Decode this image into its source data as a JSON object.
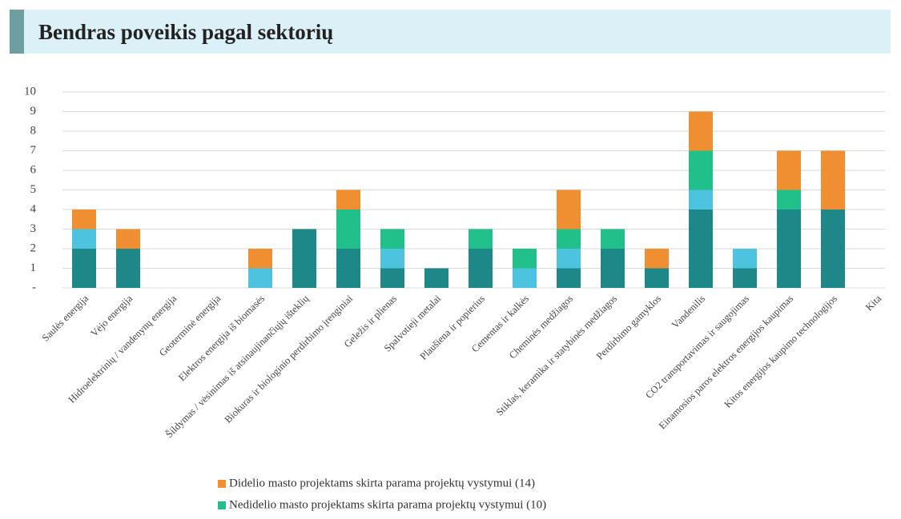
{
  "chart_data": {
    "type": "bar",
    "stacked": true,
    "title": "Bendras poveikis pagal sektorių",
    "categories": [
      "Saulės energija",
      "Vėjo energija",
      "Hidroelektrinių / vandenynų energija",
      "Geoterminė energija",
      "Elektros energija iš biomasės",
      "Šildymas / vėsinimas iš atsinaujinančiųjų išteklių",
      "Biokuras ir biologinio perdirbimo įrenginiai",
      "Geležis ir plienas",
      "Spalvotieji metalai",
      "Plaušiena ir popierius",
      "Cementas ir kalkės",
      "Cheminės medžiagos",
      "Stiklas, keramika ir statybinės medžiagos",
      "Perdirbimo gamyklos",
      "Vandenilis",
      "CO2 transportavimas ir saugojimas",
      "Einamosios paros elektros energijos kaupimas",
      "Kitos energijos kaupimo technologijos",
      "Kita"
    ],
    "series": [
      {
        "color": "#1e8787",
        "values": [
          2,
          2,
          0,
          0,
          0,
          3,
          2,
          1,
          1,
          2,
          0,
          1,
          2,
          1,
          4,
          1,
          4,
          4,
          0
        ]
      },
      {
        "color": "#4ec3e0",
        "values": [
          1,
          0,
          0,
          0,
          1,
          0,
          0,
          1,
          0,
          0,
          1,
          1,
          0,
          0,
          1,
          1,
          0,
          0,
          0
        ]
      },
      {
        "name": "Nedidelio masto projektams skirta parama projektų vystymui (10)",
        "color": "#21c08b",
        "values": [
          0,
          0,
          0,
          0,
          0,
          0,
          2,
          1,
          0,
          1,
          1,
          1,
          1,
          0,
          2,
          0,
          1,
          0,
          0
        ]
      },
      {
        "name": "Didelio masto projektams skirta parama projektų vystymui (14)",
        "color": "#ef8f31",
        "values": [
          1,
          1,
          0,
          0,
          1,
          0,
          1,
          0,
          0,
          0,
          0,
          2,
          0,
          1,
          2,
          0,
          2,
          3,
          0
        ]
      }
    ],
    "ylim": [
      0,
      10
    ],
    "yticks": [
      {
        "value": 0,
        "label": "-"
      },
      1,
      2,
      3,
      4,
      5,
      6,
      7,
      8,
      9,
      10
    ],
    "grid": true
  }
}
